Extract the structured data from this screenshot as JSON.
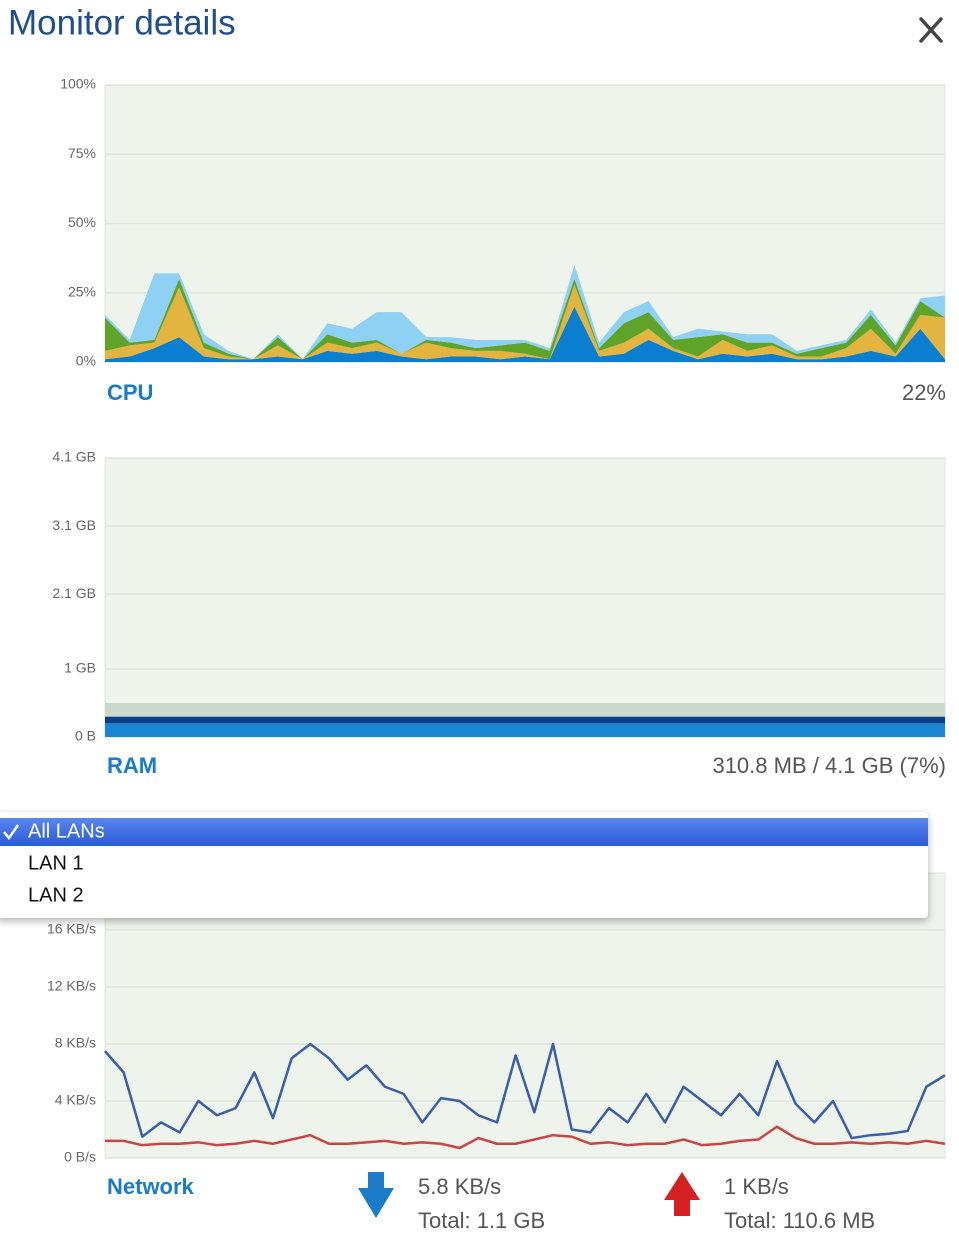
{
  "title": "Monitor details",
  "chart_data": [
    {
      "type": "area",
      "label": "CPU",
      "summary": "22%",
      "ylim": [
        0,
        100
      ],
      "yticks": [
        {
          "value": 0,
          "label": "0%"
        },
        {
          "value": 25,
          "label": "25%"
        },
        {
          "value": 50,
          "label": "50%"
        },
        {
          "value": 75,
          "label": "75%"
        },
        {
          "value": 100,
          "label": "100%"
        }
      ],
      "grid": true,
      "stacked": true,
      "series": [
        {
          "color": "#0a7fd0",
          "values": [
            1,
            2,
            5,
            9,
            2,
            1,
            1,
            2,
            1,
            4,
            3,
            4,
            2,
            1,
            2,
            2,
            1,
            2,
            1,
            20,
            2,
            3,
            8,
            4,
            1,
            3,
            2,
            3,
            1,
            1,
            2,
            4,
            2,
            12,
            1
          ]
        },
        {
          "color": "#e3b440",
          "values": [
            3,
            4,
            2,
            18,
            3,
            1,
            0,
            4,
            0,
            3,
            2,
            3,
            1,
            6,
            3,
            2,
            3,
            1,
            0,
            8,
            2,
            4,
            4,
            1,
            1,
            5,
            2,
            3,
            1,
            1,
            3,
            8,
            1,
            5,
            15
          ]
        },
        {
          "color": "#5fa32a",
          "values": [
            12,
            1,
            1,
            3,
            2,
            1,
            0,
            3,
            0,
            3,
            2,
            1,
            0,
            1,
            2,
            1,
            2,
            4,
            3,
            2,
            1,
            7,
            6,
            3,
            7,
            2,
            3,
            1,
            1,
            3,
            2,
            5,
            3,
            5,
            0
          ]
        },
        {
          "color": "#8fd0f5",
          "values": [
            1,
            1,
            24,
            2,
            3,
            1,
            0,
            1,
            0,
            4,
            5,
            10,
            15,
            1,
            2,
            3,
            2,
            1,
            1,
            5,
            2,
            4,
            4,
            1,
            3,
            1,
            3,
            3,
            1,
            1,
            1,
            2,
            1,
            1,
            8
          ]
        }
      ]
    },
    {
      "type": "area",
      "label": "RAM",
      "summary": "310.8 MB / 4.1 GB (7%)",
      "ylim": [
        0,
        4.1
      ],
      "yticks": [
        {
          "value": 0,
          "label": "0 B"
        },
        {
          "value": 1,
          "label": "1 GB"
        },
        {
          "value": 2.1,
          "label": "2.1 GB"
        },
        {
          "value": 3.1,
          "label": "3.1 GB"
        },
        {
          "value": 4.1,
          "label": "4.1 GB"
        }
      ],
      "grid": true,
      "stacked": true,
      "series": [
        {
          "color": "#1a86d4",
          "values": [
            0.2,
            0.2
          ]
        },
        {
          "color": "#0a3f8c",
          "values": [
            0.1,
            0.1
          ]
        },
        {
          "color": "#c9d9cc",
          "values": [
            0.2,
            0.2
          ]
        }
      ]
    },
    {
      "type": "line",
      "label": "Network",
      "download": {
        "rate": "5.8 KB/s",
        "total": "Total: 1.1 GB"
      },
      "upload": {
        "rate": "1 KB/s",
        "total": "Total: 110.6 MB"
      },
      "ylim": [
        0,
        20
      ],
      "yticks": [
        {
          "value": 0,
          "label": "0 B/s"
        },
        {
          "value": 4,
          "label": "4 KB/s"
        },
        {
          "value": 8,
          "label": "8 KB/s"
        },
        {
          "value": 12,
          "label": "12 KB/s"
        },
        {
          "value": 16,
          "label": "16 KB/s"
        }
      ],
      "grid": true,
      "series": [
        {
          "color": "#3a5fa8",
          "values": [
            7.5,
            6,
            1.5,
            2.5,
            1.8,
            4,
            3,
            3.5,
            6,
            2.8,
            7,
            8,
            7,
            5.5,
            6.5,
            5,
            4.5,
            2.5,
            4.2,
            4,
            3,
            2.5,
            7.2,
            3.2,
            8,
            2,
            1.8,
            3.5,
            2.5,
            4.5,
            2.5,
            5,
            4,
            3,
            4.5,
            3,
            6.8,
            3.8,
            2.5,
            4,
            1.4,
            1.6,
            1.7,
            1.9,
            5,
            5.8
          ]
        },
        {
          "color": "#c84545",
          "values": [
            1.2,
            1.2,
            0.9,
            1,
            1,
            1.1,
            0.9,
            1,
            1.2,
            1,
            1.3,
            1.6,
            1,
            1,
            1.1,
            1.2,
            1,
            1.1,
            1,
            0.7,
            1.4,
            1,
            1,
            1.3,
            1.6,
            1.5,
            1,
            1.1,
            0.9,
            1,
            1,
            1.3,
            0.9,
            1,
            1.2,
            1.3,
            2.2,
            1.4,
            1,
            1,
            1.1,
            1,
            1.1,
            1,
            1.2,
            1
          ]
        }
      ]
    }
  ],
  "dropdown": {
    "options": [
      "All LANs",
      "LAN 1",
      "LAN 2"
    ],
    "selected": 0
  }
}
